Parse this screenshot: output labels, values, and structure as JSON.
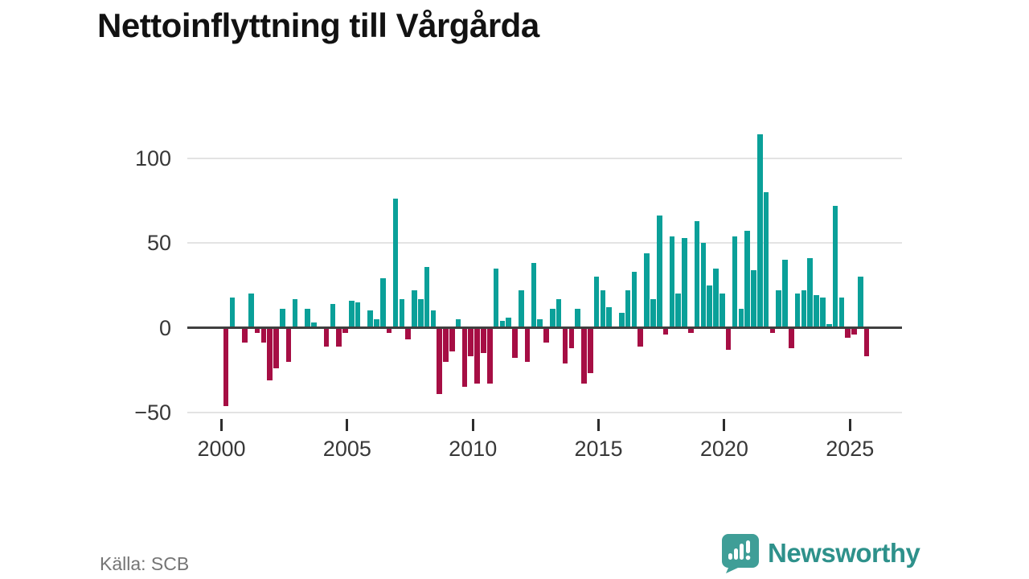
{
  "title": "Nettoinflyttning till Vårgårda",
  "source_note": "Källa: SCB",
  "branding": {
    "logo_text": "Newsworthy",
    "logo_icon": "speech-bubble-bar-chart-icon"
  },
  "colors": {
    "positive_bar": "#0aa099",
    "negative_bar": "#a60e44",
    "axis_line": "#3f3f3f",
    "gridline": "#e3e3e3",
    "tick_text": "#383838",
    "title_text": "#121212",
    "source_text": "#757575",
    "brand_teal": "#2e918b"
  },
  "chart_data": {
    "type": "bar",
    "title": "Nettoinflyttning till Vårgårda",
    "xlabel": "",
    "ylabel": "",
    "frequency": "quarterly",
    "start_year": 2000,
    "start_quarter": 1,
    "end_year": 2025,
    "end_quarter": 3,
    "grid": true,
    "legend": false,
    "ylim": [
      -55,
      120
    ],
    "y_ticks": [
      {
        "label": "100",
        "v": 100
      },
      {
        "label": "50",
        "v": 50
      },
      {
        "label": "0",
        "v": 0
      },
      {
        "label": "−50",
        "v": -50
      }
    ],
    "x_ticks": [
      {
        "label": "2000",
        "year": 2000
      },
      {
        "label": "2005",
        "year": 2005
      },
      {
        "label": "2010",
        "year": 2010
      },
      {
        "label": "2015",
        "year": 2015
      },
      {
        "label": "2020",
        "year": 2020
      },
      {
        "label": "2025",
        "year": 2025
      }
    ],
    "values": [
      -46,
      18,
      0,
      -9,
      20,
      -3,
      -9,
      -31,
      -24,
      11,
      -20,
      17,
      0,
      11,
      3,
      0,
      -11,
      14,
      -11,
      -3,
      16,
      15,
      0,
      10,
      5,
      29,
      -3,
      76,
      17,
      -7,
      22,
      17,
      36,
      10,
      -39,
      -20,
      -14,
      5,
      -35,
      -17,
      -33,
      -15,
      -33,
      35,
      4,
      6,
      -18,
      22,
      -20,
      38,
      5,
      -9,
      11,
      17,
      -21,
      -12,
      11,
      -33,
      -27,
      30,
      22,
      12,
      0,
      9,
      22,
      33,
      -11,
      44,
      17,
      66,
      -4,
      54,
      20,
      53,
      -3,
      63,
      50,
      25,
      35,
      20,
      -13,
      54,
      11,
      57,
      34,
      114,
      80,
      -3,
      22,
      40,
      -12,
      20,
      22,
      41,
      19,
      18,
      2,
      72,
      18,
      -6,
      -4,
      30,
      -17
    ]
  }
}
